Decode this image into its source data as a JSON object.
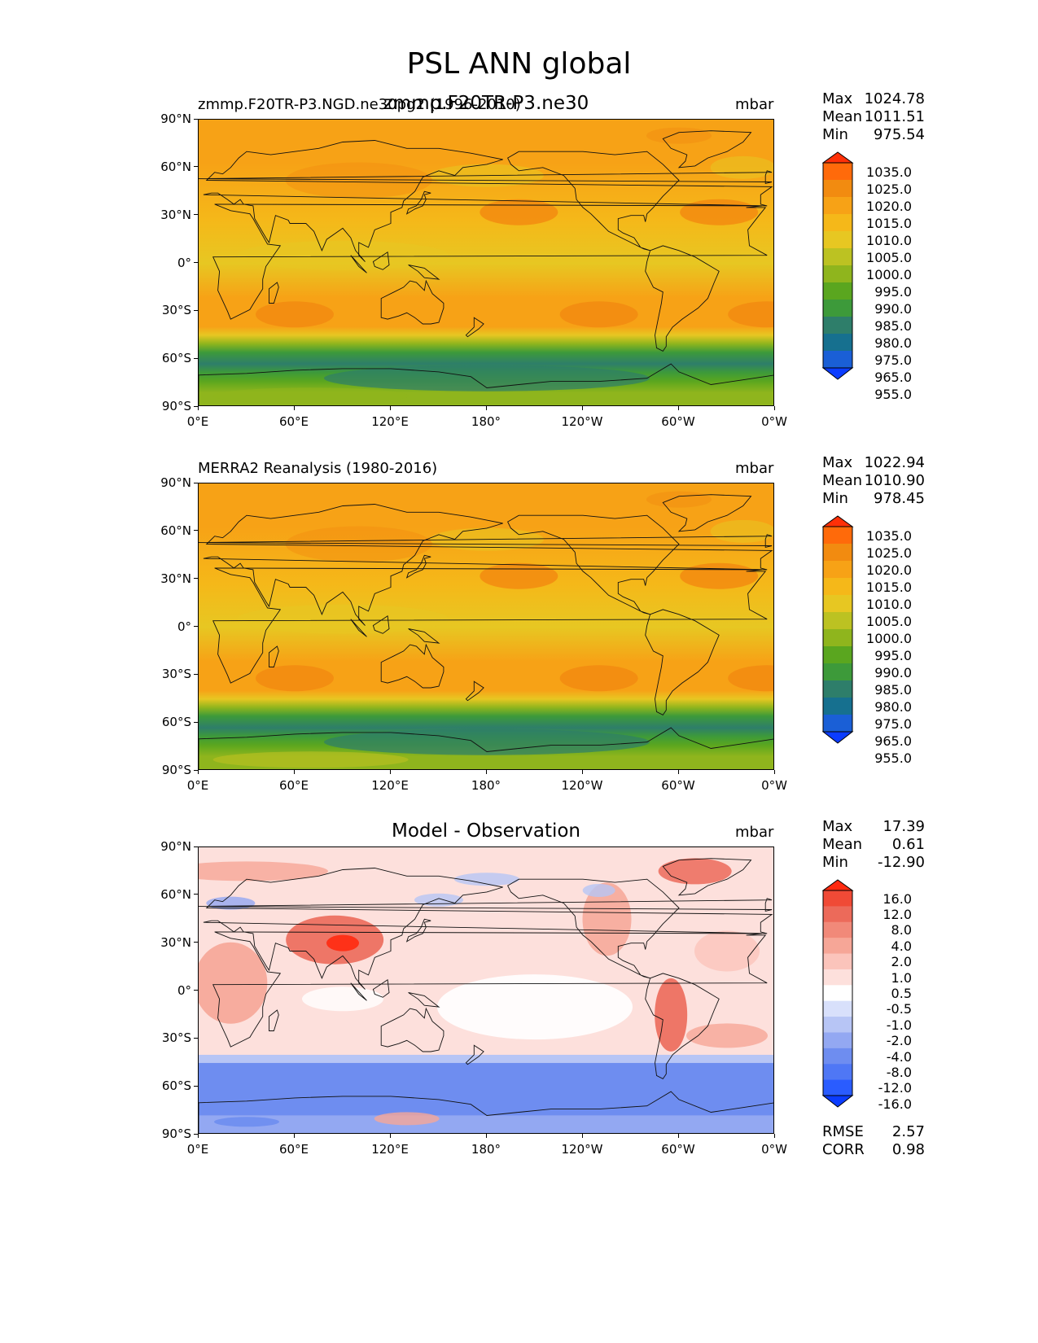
{
  "figure_title": "PSL ANN global",
  "x_ticks": [
    "0°E",
    "60°E",
    "120°E",
    "180°",
    "120°W",
    "60°W",
    "0°W"
  ],
  "y_ticks": [
    "90°N",
    "60°N",
    "30°N",
    "0°",
    "30°S",
    "60°S",
    "90°S"
  ],
  "panels": [
    {
      "left_label": "zmmp.F20TR-P3.NGD.ne30pg2 (1996-2010)",
      "center_label": "zmmp.F20TR-P3.ne30",
      "units": "mbar",
      "stats": [
        {
          "name": "Max",
          "value": "1024.78"
        },
        {
          "name": "Mean",
          "value": "1011.51"
        },
        {
          "name": "Min",
          "value": "975.54"
        }
      ],
      "colorbar_labels": [
        "1035.0",
        "1025.0",
        "1020.0",
        "1015.0",
        "1010.0",
        "1005.0",
        "1000.0",
        "995.0",
        "990.0",
        "985.0",
        "980.0",
        "975.0",
        "965.0",
        "955.0"
      ]
    },
    {
      "left_label": "MERRA2 Reanalysis (1980-2016)",
      "center_label": "",
      "units": "mbar",
      "stats": [
        {
          "name": "Max",
          "value": "1022.94"
        },
        {
          "name": "Mean",
          "value": "1010.90"
        },
        {
          "name": "Min",
          "value": "978.45"
        }
      ],
      "colorbar_labels": [
        "1035.0",
        "1025.0",
        "1020.0",
        "1015.0",
        "1010.0",
        "1005.0",
        "1000.0",
        "995.0",
        "990.0",
        "985.0",
        "980.0",
        "975.0",
        "965.0",
        "955.0"
      ]
    },
    {
      "left_label": "",
      "center_label": "Model - Observation",
      "units": "mbar",
      "stats": [
        {
          "name": "Max",
          "value": "17.39"
        },
        {
          "name": "Mean",
          "value": "0.61"
        },
        {
          "name": "Min",
          "value": "-12.90"
        }
      ],
      "colorbar_labels": [
        "16.0",
        "12.0",
        "8.0",
        "4.0",
        "2.0",
        "1.0",
        "0.5",
        "-0.5",
        "-1.0",
        "-2.0",
        "-4.0",
        "-8.0",
        "-12.0",
        "-16.0"
      ],
      "metrics": [
        {
          "name": "RMSE",
          "value": "2.57"
        },
        {
          "name": "CORR",
          "value": "0.98"
        }
      ]
    }
  ],
  "colors": {
    "psl_scale": [
      "#0b3cff",
      "#1a5fd6",
      "#16708f",
      "#2e7e6a",
      "#3d9a3a",
      "#5aa61f",
      "#8fb51d",
      "#bcc222",
      "#e7c722",
      "#f5b819",
      "#f7a216",
      "#f28b10",
      "#ff6a0a",
      "#ff3008"
    ],
    "diff_scale": [
      "#0b3cff",
      "#2a5cff",
      "#4f77f5",
      "#6e8df0",
      "#93a8f2",
      "#b7c5f5",
      "#d8e0fb",
      "#ffffff",
      "#fde0dc",
      "#fbc4bb",
      "#f6a697",
      "#f18979",
      "#ec6a5a",
      "#f04a36",
      "#ff2a10"
    ],
    "land_outline": "#111111"
  }
}
